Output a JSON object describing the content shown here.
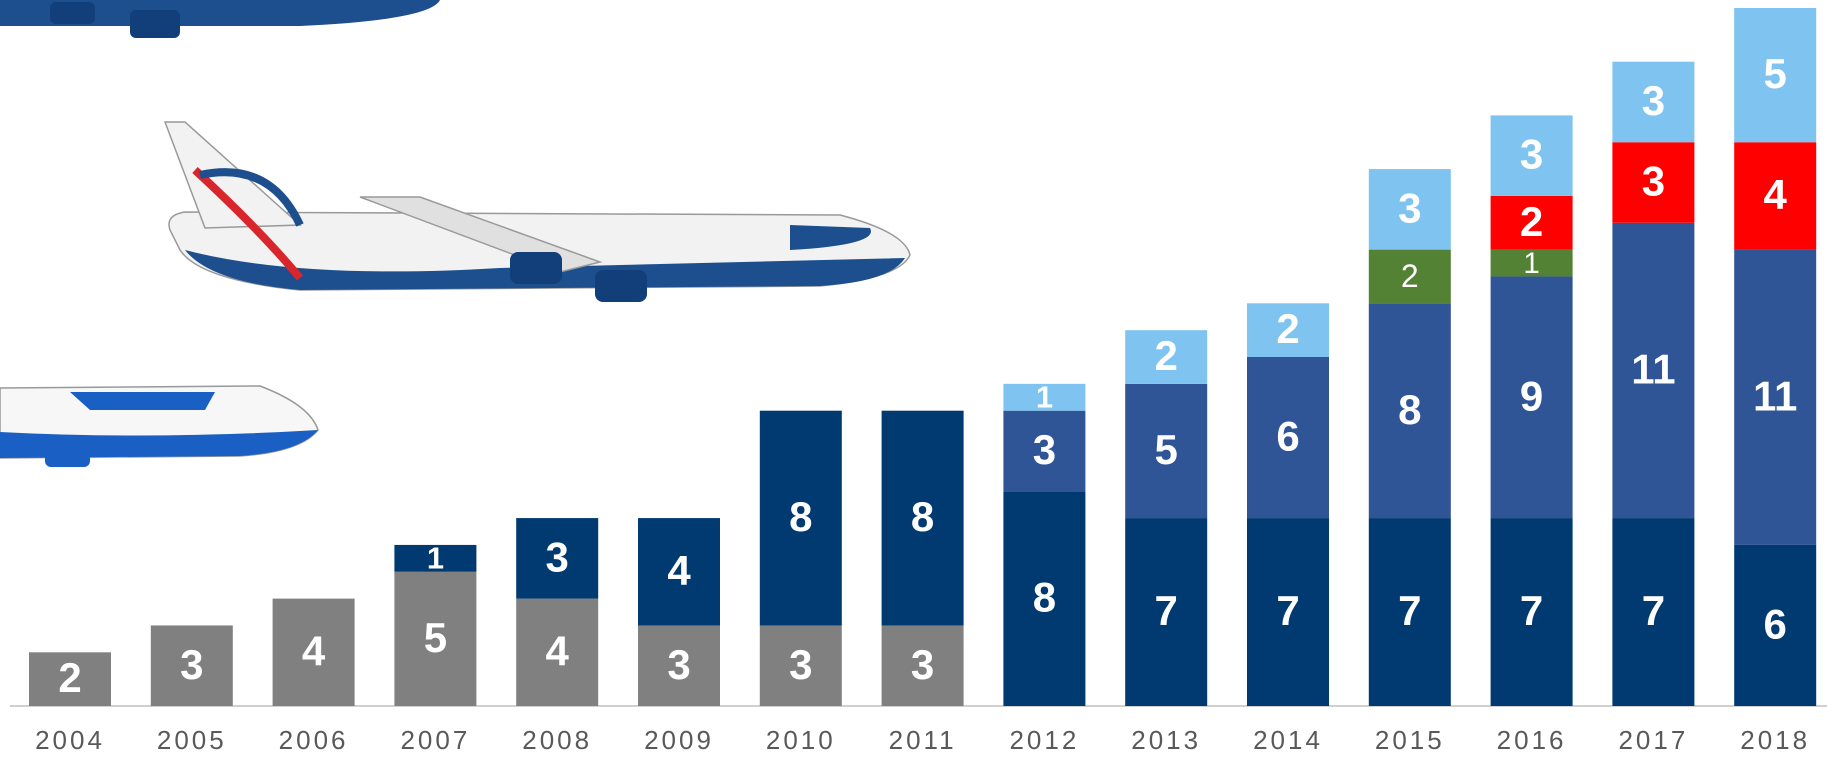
{
  "chart_data": {
    "type": "stacked-bar",
    "categories": [
      "2004",
      "2005",
      "2006",
      "2007",
      "2008",
      "2009",
      "2010",
      "2011",
      "2012",
      "2013",
      "2014",
      "2015",
      "2016",
      "2017",
      "2018"
    ],
    "series": [
      {
        "color": "#808080",
        "values": [
          2,
          3,
          4,
          5,
          4,
          3,
          3,
          3,
          null,
          null,
          null,
          null,
          null,
          null,
          null
        ]
      },
      {
        "color": "#003a70",
        "values": [
          null,
          null,
          null,
          1,
          3,
          4,
          8,
          8,
          8,
          7,
          7,
          7,
          7,
          7,
          6
        ]
      },
      {
        "color": "#2f5597",
        "values": [
          null,
          null,
          null,
          null,
          null,
          null,
          null,
          null,
          3,
          5,
          6,
          8,
          9,
          11,
          11
        ]
      },
      {
        "color": "#548235",
        "values": [
          null,
          null,
          null,
          null,
          null,
          null,
          null,
          null,
          null,
          null,
          null,
          2,
          1,
          null,
          null
        ]
      },
      {
        "color": "#ff0000",
        "values": [
          null,
          null,
          null,
          null,
          null,
          null,
          null,
          null,
          null,
          null,
          null,
          null,
          2,
          3,
          4
        ]
      },
      {
        "color": "#7fc4f0",
        "values": [
          null,
          null,
          null,
          null,
          null,
          null,
          null,
          null,
          1,
          2,
          2,
          3,
          3,
          3,
          5
        ]
      }
    ],
    "ylim": [
      0,
      26
    ]
  }
}
